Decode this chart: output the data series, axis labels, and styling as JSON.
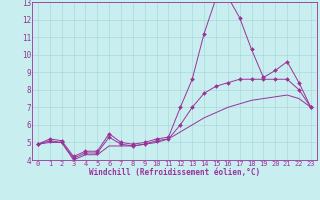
{
  "title": "",
  "xlabel": "Windchill (Refroidissement éolien,°C)",
  "ylabel": "",
  "background_color": "#c8eef0",
  "grid_color": "#aad8dc",
  "line_color": "#993399",
  "xlim": [
    -0.5,
    23.5
  ],
  "ylim": [
    4,
    13
  ],
  "xticks": [
    0,
    1,
    2,
    3,
    4,
    5,
    6,
    7,
    8,
    9,
    10,
    11,
    12,
    13,
    14,
    15,
    16,
    17,
    18,
    19,
    20,
    21,
    22,
    23
  ],
  "yticks": [
    4,
    5,
    6,
    7,
    8,
    9,
    10,
    11,
    12,
    13
  ],
  "series1_x": [
    0,
    1,
    2,
    3,
    4,
    5,
    6,
    7,
    8,
    9,
    10,
    11,
    12,
    13,
    14,
    15,
    16,
    17,
    18,
    19,
    20,
    21,
    22,
    23
  ],
  "series1_y": [
    4.9,
    5.2,
    5.1,
    4.2,
    4.5,
    4.5,
    5.5,
    5.0,
    4.9,
    5.0,
    5.2,
    5.3,
    7.0,
    8.6,
    11.2,
    13.2,
    13.3,
    12.1,
    10.3,
    8.7,
    9.1,
    9.6,
    8.4,
    7.0
  ],
  "series2_x": [
    0,
    1,
    2,
    3,
    4,
    5,
    6,
    7,
    8,
    9,
    10,
    11,
    12,
    13,
    14,
    15,
    16,
    17,
    18,
    19,
    20,
    21,
    22,
    23
  ],
  "series2_y": [
    4.9,
    5.1,
    5.0,
    4.1,
    4.4,
    4.4,
    5.3,
    4.9,
    4.8,
    4.9,
    5.1,
    5.2,
    6.0,
    7.0,
    7.8,
    8.2,
    8.4,
    8.6,
    8.6,
    8.6,
    8.6,
    8.6,
    8.0,
    7.0
  ],
  "series3_x": [
    0,
    1,
    2,
    3,
    4,
    5,
    6,
    7,
    8,
    9,
    10,
    11,
    12,
    13,
    14,
    15,
    16,
    17,
    18,
    19,
    20,
    21,
    22,
    23
  ],
  "series3_y": [
    4.9,
    5.0,
    5.0,
    4.0,
    4.3,
    4.3,
    4.8,
    4.8,
    4.8,
    4.9,
    5.0,
    5.2,
    5.6,
    6.0,
    6.4,
    6.7,
    7.0,
    7.2,
    7.4,
    7.5,
    7.6,
    7.7,
    7.5,
    7.0
  ],
  "tick_fontsize": 5.0,
  "xlabel_fontsize": 5.5,
  "marker_size": 2.0
}
